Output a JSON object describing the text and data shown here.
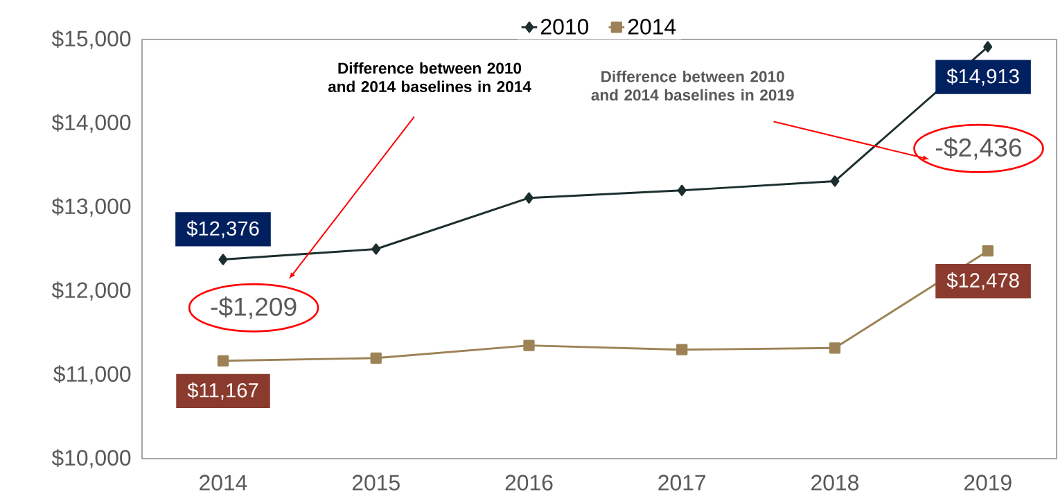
{
  "chart_data": {
    "type": "line",
    "categories": [
      "2014",
      "2015",
      "2016",
      "2017",
      "2018",
      "2019"
    ],
    "series": [
      {
        "name": "2010",
        "color": "#1c2e2e",
        "marker": "diamond",
        "values": [
          12376,
          12500,
          13110,
          13200,
          13310,
          14913
        ],
        "value_labels": [
          "$12,376",
          null,
          null,
          null,
          null,
          "$14,913"
        ]
      },
      {
        "name": "2014",
        "color": "#9c8256",
        "marker": "square",
        "values": [
          11167,
          11200,
          11350,
          11300,
          11320,
          12478
        ],
        "value_labels": [
          "$11,167",
          null,
          null,
          null,
          null,
          "$12,478"
        ]
      }
    ],
    "ylim": [
      10000,
      15000
    ],
    "yticks": [
      {
        "value": 10000,
        "label": "$10,000"
      },
      {
        "value": 11000,
        "label": "$11,000"
      },
      {
        "value": 12000,
        "label": "$12,000"
      },
      {
        "value": 13000,
        "label": "$13,000"
      },
      {
        "value": 14000,
        "label": "$14,000"
      },
      {
        "value": 15000,
        "label": "$15,000"
      }
    ],
    "grid": false,
    "legend": "top",
    "annotations": [
      "Difference between 2010 and 2014 baselines in **2014**",
      "Difference between 2010 and 2014 baselines in **2019**",
      "-$1,209",
      "-$2,436"
    ]
  }
}
